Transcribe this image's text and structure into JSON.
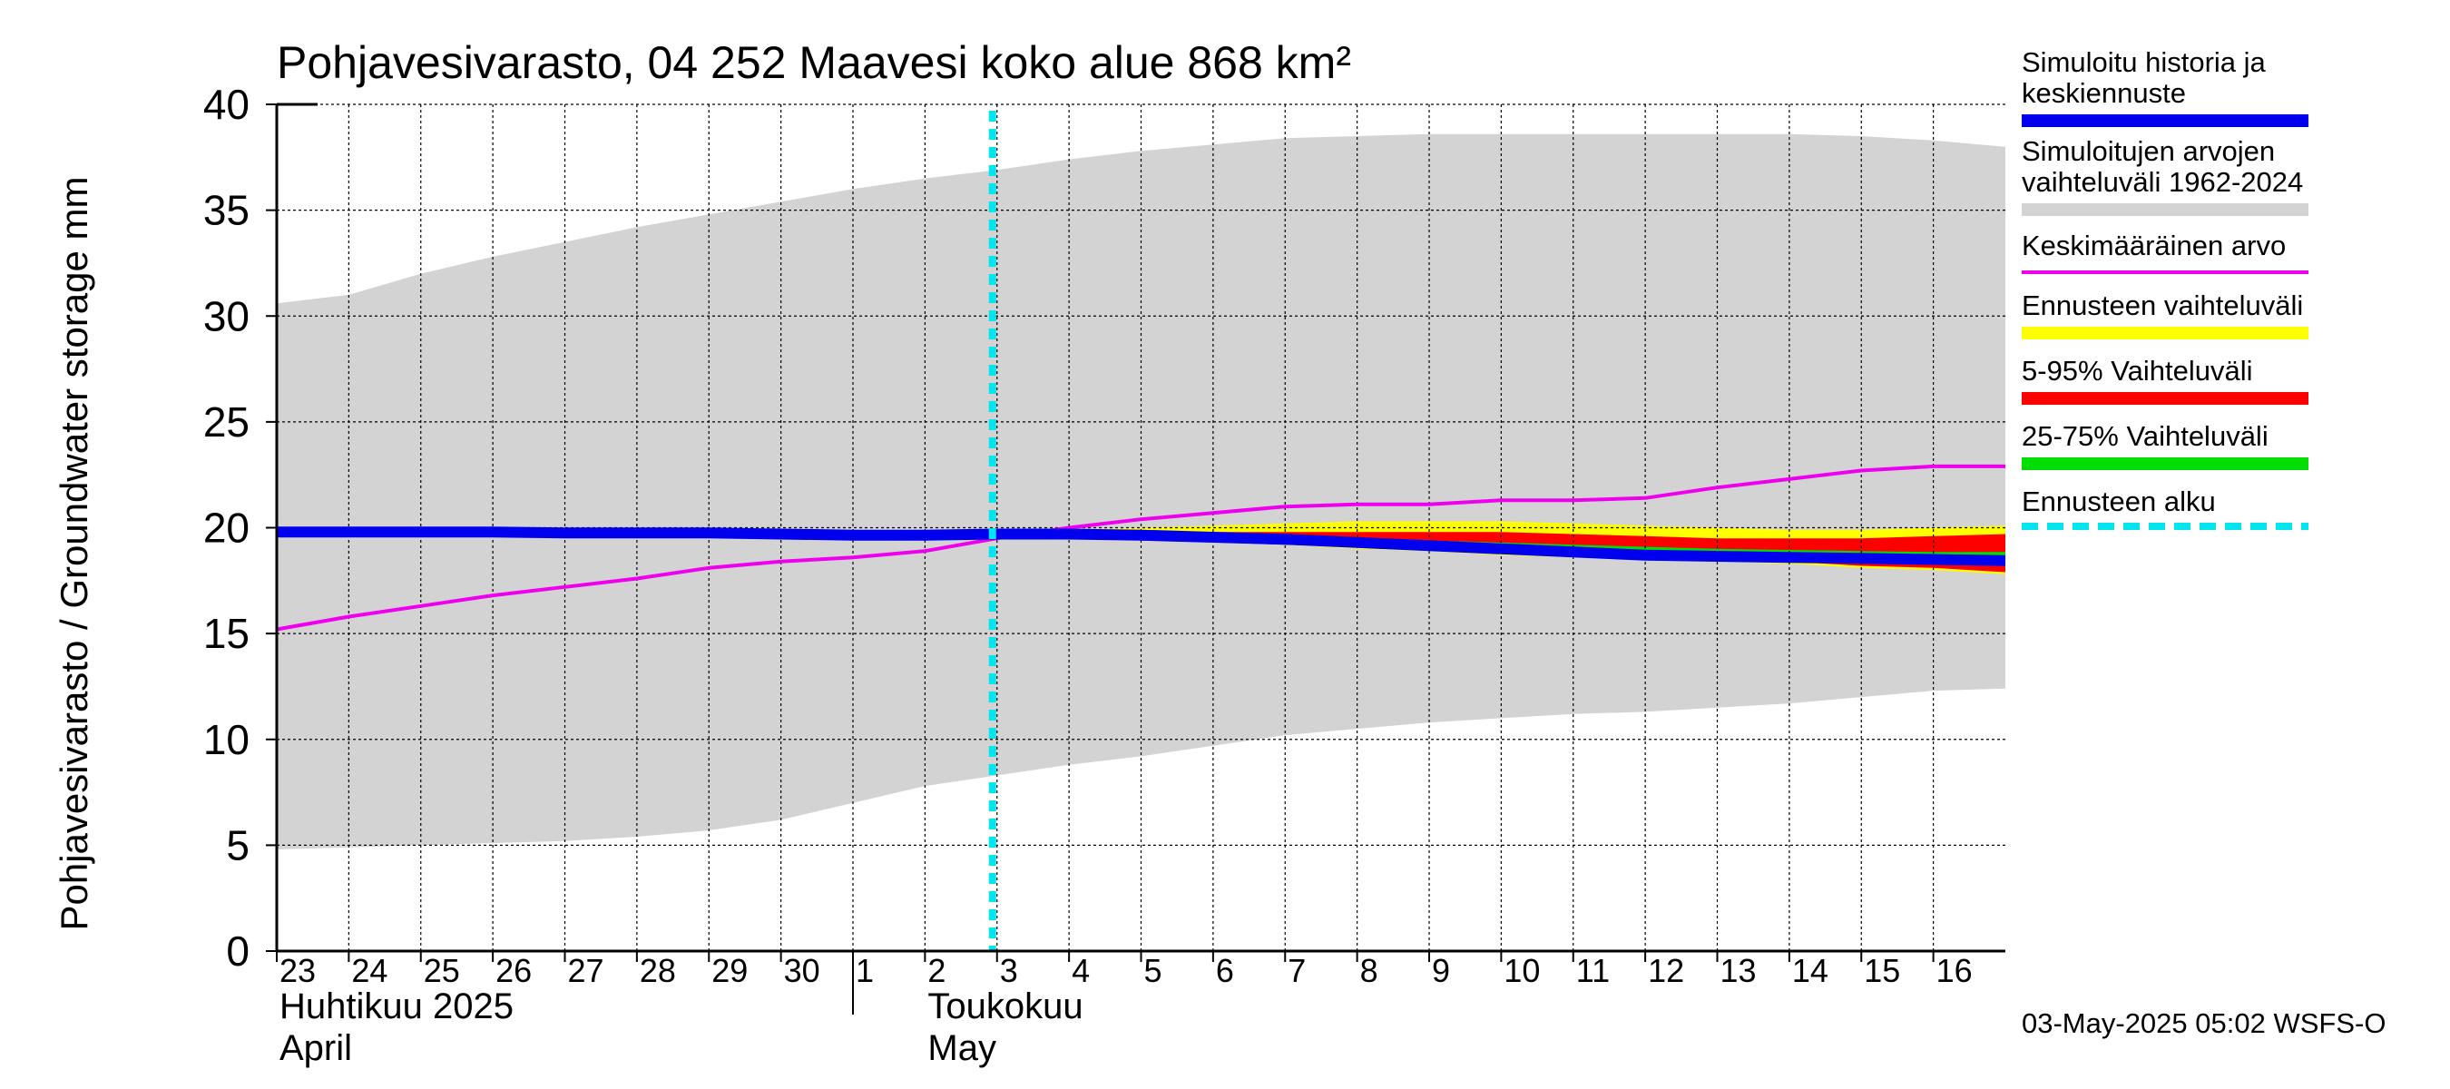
{
  "chart_data": {
    "type": "area",
    "title": "Pohjavesivarasto, 04 252 Maavesi koko alue 868 km²",
    "ylabel": "Pohjavesivarasto / Groundwater storage   mm",
    "ylim": [
      0,
      40
    ],
    "yticks": [
      "0",
      "5",
      "10",
      "15",
      "20",
      "25",
      "30",
      "35",
      "40"
    ],
    "xlim": [
      0,
      24
    ],
    "day_labels": [
      "23",
      "24",
      "25",
      "26",
      "27",
      "28",
      "29",
      "30",
      "1",
      "2",
      "3",
      "4",
      "5",
      "6",
      "7",
      "8",
      "9",
      "10",
      "11",
      "12",
      "13",
      "14",
      "15",
      "16"
    ],
    "month_labels": [
      {
        "fi": "Huhtikuu  2025",
        "en": "April",
        "day_index": 0
      },
      {
        "fi": "Toukokuu",
        "en": "May",
        "day_index": 8
      }
    ],
    "forecast_start": 10,
    "grid": true,
    "legend_position": "right",
    "series": [
      {
        "name": "Simuloitujen arvojen vaihteluväli 1962-2024",
        "kind": "band",
        "color": "#d3d3d3",
        "x": [
          0,
          1,
          2,
          3,
          4,
          5,
          6,
          7,
          8,
          9,
          10,
          11,
          12,
          13,
          14,
          15,
          16,
          17,
          18,
          19,
          20,
          21,
          22,
          23,
          24
        ],
        "upper": [
          30.6,
          31.0,
          32.0,
          32.8,
          33.5,
          34.2,
          34.8,
          35.4,
          36.0,
          36.5,
          36.9,
          37.4,
          37.8,
          38.1,
          38.4,
          38.5,
          38.6,
          38.6,
          38.6,
          38.6,
          38.6,
          38.6,
          38.5,
          38.3,
          38.0
        ],
        "lower": [
          4.8,
          4.9,
          5.0,
          5.1,
          5.2,
          5.4,
          5.7,
          6.2,
          7.0,
          7.8,
          8.3,
          8.8,
          9.2,
          9.7,
          10.2,
          10.5,
          10.8,
          11.0,
          11.2,
          11.3,
          11.5,
          11.7,
          12.0,
          12.3,
          12.4
        ]
      },
      {
        "name": "Ennusteen vaihteluväli",
        "kind": "band",
        "color": "#ffff00",
        "x": [
          10,
          11,
          12,
          13,
          14,
          15,
          16,
          17,
          18,
          19,
          20,
          21,
          22,
          23,
          24
        ],
        "upper": [
          19.8,
          19.9,
          20.0,
          20.1,
          20.2,
          20.3,
          20.3,
          20.3,
          20.2,
          20.1,
          20.0,
          19.9,
          19.9,
          20.0,
          20.1
        ],
        "lower": [
          19.6,
          19.5,
          19.4,
          19.3,
          19.2,
          19.0,
          18.9,
          18.7,
          18.6,
          18.5,
          18.4,
          18.3,
          18.1,
          18.0,
          17.8
        ]
      },
      {
        "name": "5-95% Vaihteluväli",
        "kind": "band",
        "color": "#ff0000",
        "x": [
          10,
          11,
          12,
          13,
          14,
          15,
          16,
          17,
          18,
          19,
          20,
          21,
          22,
          23,
          24
        ],
        "upper": [
          19.8,
          19.8,
          19.8,
          19.8,
          19.8,
          19.8,
          19.8,
          19.8,
          19.7,
          19.6,
          19.5,
          19.5,
          19.5,
          19.6,
          19.7
        ],
        "lower": [
          19.6,
          19.5,
          19.4,
          19.3,
          19.2,
          19.1,
          19.0,
          18.8,
          18.7,
          18.6,
          18.5,
          18.4,
          18.2,
          18.1,
          17.9
        ]
      },
      {
        "name": "25-75% Vaihteluväli",
        "kind": "band",
        "color": "#00dd00",
        "x": [
          10,
          11,
          12,
          13,
          14,
          15,
          16,
          17,
          18,
          19,
          20,
          21,
          22,
          23,
          24
        ],
        "upper": [
          19.75,
          19.7,
          19.65,
          19.6,
          19.5,
          19.45,
          19.4,
          19.3,
          19.2,
          19.1,
          19.0,
          18.95,
          18.9,
          18.85,
          18.85
        ],
        "lower": [
          19.7,
          19.6,
          19.55,
          19.5,
          19.4,
          19.3,
          19.2,
          19.1,
          19.0,
          18.9,
          18.8,
          18.7,
          18.6,
          18.55,
          18.5
        ]
      },
      {
        "name": "Keskimääräinen arvo",
        "kind": "line",
        "color": "#ee00ee",
        "width": 4,
        "x": [
          0,
          1,
          2,
          3,
          4,
          5,
          6,
          7,
          8,
          9,
          10,
          11,
          12,
          13,
          14,
          15,
          16,
          17,
          18,
          19,
          20,
          21,
          22,
          23,
          24
        ],
        "y": [
          15.2,
          15.8,
          16.3,
          16.8,
          17.2,
          17.6,
          18.1,
          18.4,
          18.6,
          18.9,
          19.5,
          20.0,
          20.4,
          20.7,
          21.0,
          21.1,
          21.1,
          21.3,
          21.3,
          21.4,
          21.9,
          22.3,
          22.7,
          22.9,
          22.9
        ]
      },
      {
        "name": "Simuloitu historia ja keskiennuste",
        "kind": "line",
        "color": "#0000ee",
        "width": 12,
        "x": [
          0,
          1,
          2,
          3,
          4,
          5,
          6,
          7,
          8,
          9,
          10,
          11,
          12,
          13,
          14,
          15,
          16,
          17,
          18,
          19,
          20,
          21,
          22,
          23,
          24
        ],
        "y": [
          19.8,
          19.8,
          19.8,
          19.8,
          19.75,
          19.75,
          19.75,
          19.7,
          19.65,
          19.65,
          19.7,
          19.7,
          19.65,
          19.55,
          19.45,
          19.3,
          19.15,
          19.0,
          18.85,
          18.7,
          18.65,
          18.6,
          18.55,
          18.5,
          18.45
        ]
      }
    ]
  },
  "legend": [
    {
      "label": "Simuloitu historia ja keskiennuste",
      "color": "#0000ee",
      "style": "solid"
    },
    {
      "label": "Simuloitujen arvojen vaihteluväli 1962-2024",
      "color": "#d3d3d3",
      "style": "solid"
    },
    {
      "label": "Keskimääräinen arvo",
      "color": "#ee00ee",
      "style": "thin"
    },
    {
      "label": "Ennusteen vaihteluväli",
      "color": "#ffff00",
      "style": "solid"
    },
    {
      "label": "5-95% Vaihteluväli",
      "color": "#ff0000",
      "style": "solid"
    },
    {
      "label": "25-75% Vaihteluväli",
      "color": "#00dd00",
      "style": "solid"
    },
    {
      "label": "Ennusteen alku",
      "color": "#00e5ee",
      "style": "dashed"
    }
  ],
  "timestamp": "03-May-2025 05:02 WSFS-O"
}
